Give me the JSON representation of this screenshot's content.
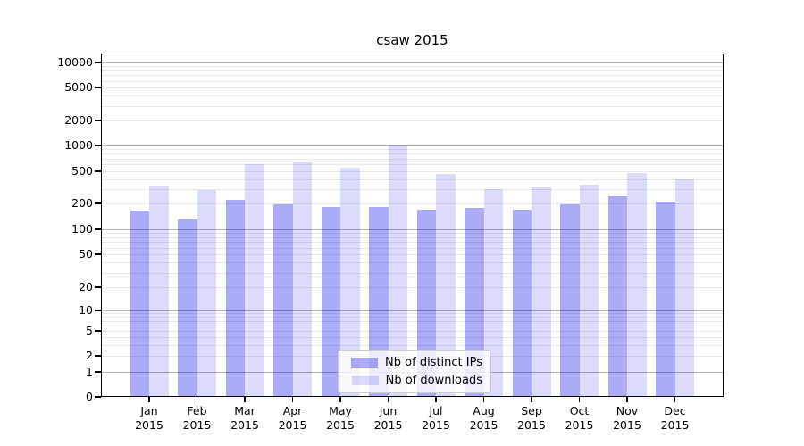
{
  "chart_data": {
    "type": "bar",
    "title": "csaw 2015",
    "categories": [
      {
        "month": "Jan",
        "year": "2015"
      },
      {
        "month": "Feb",
        "year": "2015"
      },
      {
        "month": "Mar",
        "year": "2015"
      },
      {
        "month": "Apr",
        "year": "2015"
      },
      {
        "month": "May",
        "year": "2015"
      },
      {
        "month": "Jun",
        "year": "2015"
      },
      {
        "month": "Jul",
        "year": "2015"
      },
      {
        "month": "Aug",
        "year": "2015"
      },
      {
        "month": "Sep",
        "year": "2015"
      },
      {
        "month": "Oct",
        "year": "2015"
      },
      {
        "month": "Nov",
        "year": "2015"
      },
      {
        "month": "Dec",
        "year": "2015"
      }
    ],
    "series": [
      {
        "name": "Nb of distinct IPs",
        "values": [
          165,
          130,
          220,
          196,
          180,
          183,
          170,
          178,
          170,
          196,
          245,
          210
        ]
      },
      {
        "name": "Nb of downloads",
        "values": [
          330,
          290,
          605,
          640,
          545,
          1020,
          460,
          300,
          320,
          340,
          475,
          400
        ]
      }
    ],
    "y_ticks": [
      0,
      1,
      2,
      5,
      10,
      20,
      50,
      100,
      200,
      500,
      1000,
      2000,
      5000,
      10000
    ],
    "y_scale": "symlog",
    "ylim": [
      0,
      10000
    ],
    "grid": true,
    "legend_position": "lower center",
    "colors": {
      "ips_bar": "rgba(0, 0, 230, 0.33)",
      "downloads_bar": "rgba(0, 0, 230, 0.14)",
      "major_grid": "#b0b0b0",
      "minor_grid": "#e9e9e9",
      "spine": "#000000",
      "text": "#000000"
    }
  }
}
